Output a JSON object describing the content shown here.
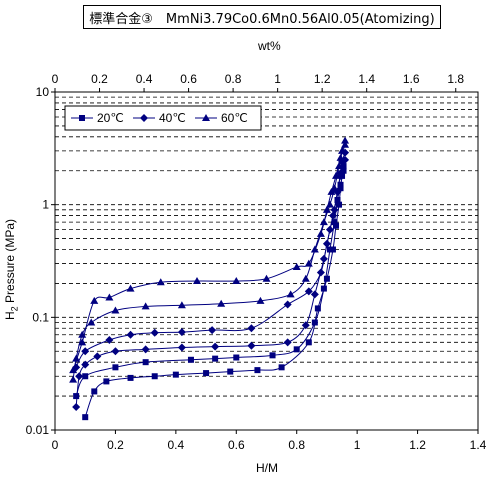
{
  "chart_data": {
    "type": "scatter",
    "title": "標準合金③　MmNi3.79Co0.6Mn0.56Al0.05(Atomizing)",
    "xlabel": "H/M",
    "ylabel_main": "H",
    "ylabel_sub": "2",
    "ylabel_rest": " Pressure (MPa)",
    "x2label": "wt%",
    "xlim": [
      0,
      1.4
    ],
    "ylim": [
      0.01,
      10
    ],
    "yscale": "log",
    "x2lim": [
      0,
      1.9
    ],
    "x_ticks": [
      "0",
      "0.2",
      "0.4",
      "0.6",
      "0.8",
      "1",
      "1.2",
      "1.4"
    ],
    "x2_ticks": [
      "0",
      "0.2",
      "0.4",
      "0.6",
      "0.8",
      "1",
      "1.2",
      "1.4",
      "1.6",
      "1.8"
    ],
    "y_ticks": [
      "0.01",
      "0.1",
      "1",
      "10"
    ],
    "grid": "horizontal minor (dashed)",
    "legend_position": "top-left",
    "color": "#000080",
    "series": [
      {
        "name": "20℃",
        "marker": "square",
        "absorption": [
          [
            0.1,
            0.013
          ],
          [
            0.13,
            0.022
          ],
          [
            0.17,
            0.027
          ],
          [
            0.25,
            0.029
          ],
          [
            0.33,
            0.03
          ],
          [
            0.4,
            0.031
          ],
          [
            0.5,
            0.032
          ],
          [
            0.58,
            0.033
          ],
          [
            0.67,
            0.034
          ],
          [
            0.75,
            0.036
          ],
          [
            0.84,
            0.06
          ],
          [
            0.87,
            0.12
          ],
          [
            0.9,
            0.22
          ],
          [
            0.92,
            0.4
          ],
          [
            0.93,
            0.65
          ],
          [
            0.94,
            1.0
          ],
          [
            0.945,
            1.4
          ],
          [
            0.95,
            1.8
          ],
          [
            0.955,
            2.2
          ]
        ],
        "desorption": [
          [
            0.955,
            2.0
          ],
          [
            0.945,
            1.5
          ],
          [
            0.935,
            1.1
          ],
          [
            0.925,
            0.7
          ],
          [
            0.91,
            0.4
          ],
          [
            0.89,
            0.18
          ],
          [
            0.86,
            0.09
          ],
          [
            0.8,
            0.052
          ],
          [
            0.72,
            0.046
          ],
          [
            0.6,
            0.044
          ],
          [
            0.53,
            0.043
          ],
          [
            0.45,
            0.042
          ],
          [
            0.3,
            0.04
          ],
          [
            0.2,
            0.036
          ],
          [
            0.1,
            0.03
          ],
          [
            0.07,
            0.02
          ]
        ]
      },
      {
        "name": "40℃",
        "marker": "diamond",
        "absorption": [
          [
            0.07,
            0.016
          ],
          [
            0.08,
            0.03
          ],
          [
            0.1,
            0.038
          ],
          [
            0.14,
            0.045
          ],
          [
            0.2,
            0.05
          ],
          [
            0.3,
            0.052
          ],
          [
            0.42,
            0.054
          ],
          [
            0.53,
            0.055
          ],
          [
            0.65,
            0.056
          ],
          [
            0.77,
            0.06
          ],
          [
            0.83,
            0.085
          ],
          [
            0.86,
            0.16
          ],
          [
            0.89,
            0.33
          ],
          [
            0.91,
            0.6
          ],
          [
            0.925,
            0.9
          ],
          [
            0.935,
            1.3
          ],
          [
            0.945,
            1.9
          ],
          [
            0.95,
            2.4
          ],
          [
            0.96,
            2.9
          ]
        ],
        "desorption": [
          [
            0.96,
            2.5
          ],
          [
            0.945,
            1.8
          ],
          [
            0.935,
            1.3
          ],
          [
            0.92,
            0.8
          ],
          [
            0.9,
            0.45
          ],
          [
            0.88,
            0.25
          ],
          [
            0.84,
            0.17
          ],
          [
            0.77,
            0.13
          ],
          [
            0.65,
            0.08
          ],
          [
            0.52,
            0.077
          ],
          [
            0.42,
            0.074
          ],
          [
            0.33,
            0.073
          ],
          [
            0.25,
            0.07
          ],
          [
            0.18,
            0.063
          ],
          [
            0.1,
            0.05
          ],
          [
            0.07,
            0.036
          ]
        ]
      },
      {
        "name": "60℃",
        "marker": "triangle",
        "absorption": [
          [
            0.06,
            0.028
          ],
          [
            0.07,
            0.043
          ],
          [
            0.09,
            0.07
          ],
          [
            0.12,
            0.09
          ],
          [
            0.2,
            0.115
          ],
          [
            0.3,
            0.125
          ],
          [
            0.42,
            0.128
          ],
          [
            0.55,
            0.132
          ],
          [
            0.68,
            0.14
          ],
          [
            0.78,
            0.16
          ],
          [
            0.83,
            0.22
          ],
          [
            0.86,
            0.4
          ],
          [
            0.89,
            0.7
          ],
          [
            0.91,
            1.0
          ],
          [
            0.925,
            1.4
          ],
          [
            0.94,
            2.2
          ],
          [
            0.95,
            3.0
          ],
          [
            0.96,
            3.7
          ]
        ],
        "desorption": [
          [
            0.96,
            3.4
          ],
          [
            0.945,
            2.6
          ],
          [
            0.93,
            1.8
          ],
          [
            0.915,
            1.3
          ],
          [
            0.9,
            0.9
          ],
          [
            0.88,
            0.55
          ],
          [
            0.84,
            0.3
          ],
          [
            0.8,
            0.28
          ],
          [
            0.7,
            0.22
          ],
          [
            0.6,
            0.21
          ],
          [
            0.47,
            0.21
          ],
          [
            0.35,
            0.205
          ],
          [
            0.25,
            0.18
          ],
          [
            0.18,
            0.15
          ],
          [
            0.13,
            0.14
          ],
          [
            0.09,
            0.06
          ],
          [
            0.06,
            0.034
          ]
        ]
      }
    ]
  }
}
